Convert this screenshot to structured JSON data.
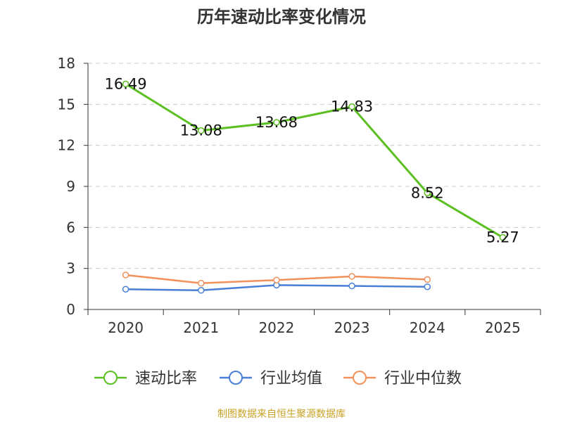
{
  "chart_data": {
    "type": "line",
    "title": "历年速动比率变化情况",
    "categories": [
      "2020",
      "2021",
      "2022",
      "2023",
      "2024",
      "2025"
    ],
    "ylim": [
      0,
      18
    ],
    "yticks": [
      0,
      3,
      6,
      9,
      12,
      15,
      18
    ],
    "grid": true,
    "legend_position": "bottom",
    "series": [
      {
        "name": "速动比率",
        "color": "#5cc022",
        "values": [
          16.49,
          13.08,
          13.68,
          14.83,
          8.52,
          5.27
        ],
        "labels": [
          "16.49",
          "13.08",
          "13.68",
          "14.83",
          "8.52",
          "5.27"
        ]
      },
      {
        "name": "行业均值",
        "color": "#4a7fd8",
        "values": [
          1.48,
          1.4,
          1.78,
          1.72,
          1.66,
          null
        ]
      },
      {
        "name": "行业中位数",
        "color": "#f2915c",
        "values": [
          2.52,
          1.92,
          2.15,
          2.42,
          2.19,
          null
        ]
      }
    ]
  },
  "source_text": "制图数据来自恒生聚源数据库"
}
